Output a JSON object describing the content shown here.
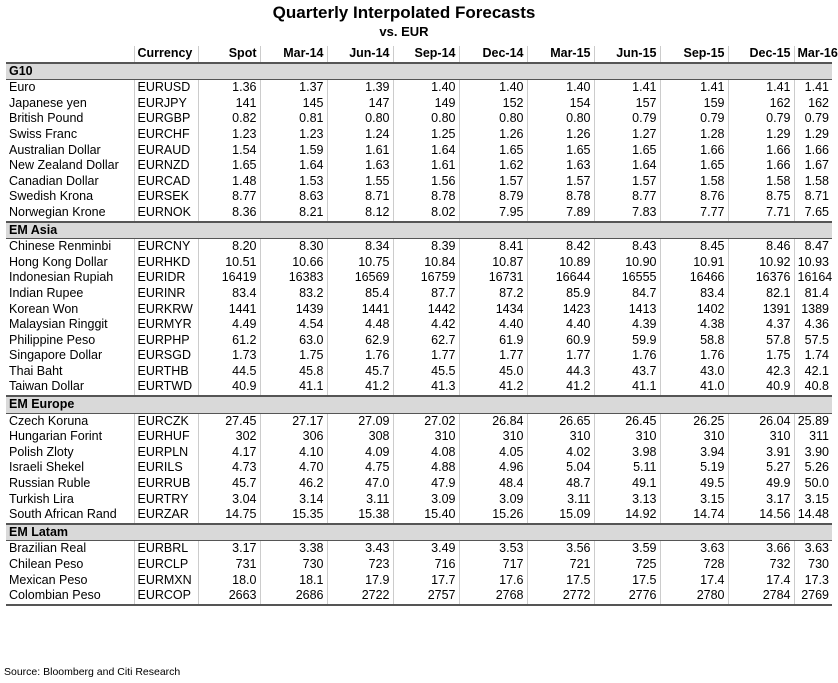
{
  "header": {
    "title": "Quarterly Interpolated Forecasts",
    "subtitle": "vs. EUR"
  },
  "table": {
    "columns": [
      "Currency",
      "Spot",
      "Mar-14",
      "Jun-14",
      "Sep-14",
      "Dec-14",
      "Mar-15",
      "Jun-15",
      "Sep-15",
      "Dec-15",
      "Mar-16"
    ],
    "groups": [
      {
        "name": "G10",
        "rows": [
          [
            "Euro",
            "EURUSD",
            "1.36",
            "1.37",
            "1.39",
            "1.40",
            "1.40",
            "1.40",
            "1.41",
            "1.41",
            "1.41",
            "1.41"
          ],
          [
            "Japanese yen",
            "EURJPY",
            "141",
            "145",
            "147",
            "149",
            "152",
            "154",
            "157",
            "159",
            "162",
            "162"
          ],
          [
            "British Pound",
            "EURGBP",
            "0.82",
            "0.81",
            "0.80",
            "0.80",
            "0.80",
            "0.80",
            "0.79",
            "0.79",
            "0.79",
            "0.79"
          ],
          [
            "Swiss Franc",
            "EURCHF",
            "1.23",
            "1.23",
            "1.24",
            "1.25",
            "1.26",
            "1.26",
            "1.27",
            "1.28",
            "1.29",
            "1.29"
          ],
          [
            "Australian Dollar",
            "EURAUD",
            "1.54",
            "1.59",
            "1.61",
            "1.64",
            "1.65",
            "1.65",
            "1.65",
            "1.66",
            "1.66",
            "1.66"
          ],
          [
            "New Zealand Dollar",
            "EURNZD",
            "1.65",
            "1.64",
            "1.63",
            "1.61",
            "1.62",
            "1.63",
            "1.64",
            "1.65",
            "1.66",
            "1.67"
          ],
          [
            "Canadian Dollar",
            "EURCAD",
            "1.48",
            "1.53",
            "1.55",
            "1.56",
            "1.57",
            "1.57",
            "1.57",
            "1.58",
            "1.58",
            "1.58"
          ],
          [
            "Swedish Krona",
            "EURSEK",
            "8.77",
            "8.63",
            "8.71",
            "8.78",
            "8.79",
            "8.78",
            "8.77",
            "8.76",
            "8.75",
            "8.71"
          ],
          [
            "Norwegian Krone",
            "EURNOK",
            "8.36",
            "8.21",
            "8.12",
            "8.02",
            "7.95",
            "7.89",
            "7.83",
            "7.77",
            "7.71",
            "7.65"
          ]
        ]
      },
      {
        "name": "EM Asia",
        "rows": [
          [
            "Chinese Renminbi",
            "EURCNY",
            "8.20",
            "8.30",
            "8.34",
            "8.39",
            "8.41",
            "8.42",
            "8.43",
            "8.45",
            "8.46",
            "8.47"
          ],
          [
            "Hong Kong Dollar",
            "EURHKD",
            "10.51",
            "10.66",
            "10.75",
            "10.84",
            "10.87",
            "10.89",
            "10.90",
            "10.91",
            "10.92",
            "10.93"
          ],
          [
            "Indonesian Rupiah",
            "EURIDR",
            "16419",
            "16383",
            "16569",
            "16759",
            "16731",
            "16644",
            "16555",
            "16466",
            "16376",
            "16164"
          ],
          [
            "Indian Rupee",
            "EURINR",
            "83.4",
            "83.2",
            "85.4",
            "87.7",
            "87.2",
            "85.9",
            "84.7",
            "83.4",
            "82.1",
            "81.4"
          ],
          [
            "Korean Won",
            "EURKRW",
            "1441",
            "1439",
            "1441",
            "1442",
            "1434",
            "1423",
            "1413",
            "1402",
            "1391",
            "1389"
          ],
          [
            "Malaysian Ringgit",
            "EURMYR",
            "4.49",
            "4.54",
            "4.48",
            "4.42",
            "4.40",
            "4.40",
            "4.39",
            "4.38",
            "4.37",
            "4.36"
          ],
          [
            "Philippine Peso",
            "EURPHP",
            "61.2",
            "63.0",
            "62.9",
            "62.7",
            "61.9",
            "60.9",
            "59.9",
            "58.8",
            "57.8",
            "57.5"
          ],
          [
            "Singapore Dollar",
            "EURSGD",
            "1.73",
            "1.75",
            "1.76",
            "1.77",
            "1.77",
            "1.77",
            "1.76",
            "1.76",
            "1.75",
            "1.74"
          ],
          [
            "Thai Baht",
            "EURTHB",
            "44.5",
            "45.8",
            "45.7",
            "45.5",
            "45.0",
            "44.3",
            "43.7",
            "43.0",
            "42.3",
            "42.1"
          ],
          [
            "Taiwan Dollar",
            "EURTWD",
            "40.9",
            "41.1",
            "41.2",
            "41.3",
            "41.2",
            "41.2",
            "41.1",
            "41.0",
            "40.9",
            "40.8"
          ]
        ]
      },
      {
        "name": "EM Europe",
        "rows": [
          [
            "Czech Koruna",
            "EURCZK",
            "27.45",
            "27.17",
            "27.09",
            "27.02",
            "26.84",
            "26.65",
            "26.45",
            "26.25",
            "26.04",
            "25.89"
          ],
          [
            "Hungarian Forint",
            "EURHUF",
            "302",
            "306",
            "308",
            "310",
            "310",
            "310",
            "310",
            "310",
            "310",
            "311"
          ],
          [
            "Polish Zloty",
            "EURPLN",
            "4.17",
            "4.10",
            "4.09",
            "4.08",
            "4.05",
            "4.02",
            "3.98",
            "3.94",
            "3.91",
            "3.90"
          ],
          [
            "Israeli Shekel",
            "EURILS",
            "4.73",
            "4.70",
            "4.75",
            "4.88",
            "4.96",
            "5.04",
            "5.11",
            "5.19",
            "5.27",
            "5.26"
          ],
          [
            "Russian Ruble",
            "EURRUB",
            "45.7",
            "46.2",
            "47.0",
            "47.9",
            "48.4",
            "48.7",
            "49.1",
            "49.5",
            "49.9",
            "50.0"
          ],
          [
            "Turkish Lira",
            "EURTRY",
            "3.04",
            "3.14",
            "3.11",
            "3.09",
            "3.09",
            "3.11",
            "3.13",
            "3.15",
            "3.17",
            "3.15"
          ],
          [
            "South African Rand",
            "EURZAR",
            "14.75",
            "15.35",
            "15.38",
            "15.40",
            "15.26",
            "15.09",
            "14.92",
            "14.74",
            "14.56",
            "14.48"
          ]
        ]
      },
      {
        "name": "EM Latam",
        "rows": [
          [
            "Brazilian Real",
            "EURBRL",
            "3.17",
            "3.38",
            "3.43",
            "3.49",
            "3.53",
            "3.56",
            "3.59",
            "3.63",
            "3.66",
            "3.63"
          ],
          [
            "Chilean Peso",
            "EURCLP",
            "731",
            "730",
            "723",
            "716",
            "717",
            "721",
            "725",
            "728",
            "732",
            "730"
          ],
          [
            "Mexican Peso",
            "EURMXN",
            "18.0",
            "18.1",
            "17.9",
            "17.7",
            "17.6",
            "17.5",
            "17.5",
            "17.4",
            "17.4",
            "17.3"
          ],
          [
            "Colombian Peso",
            "EURCOP",
            "2663",
            "2686",
            "2722",
            "2757",
            "2768",
            "2772",
            "2776",
            "2780",
            "2784",
            "2769"
          ]
        ]
      }
    ]
  },
  "source": "Source: Bloomberg and Citi Research"
}
